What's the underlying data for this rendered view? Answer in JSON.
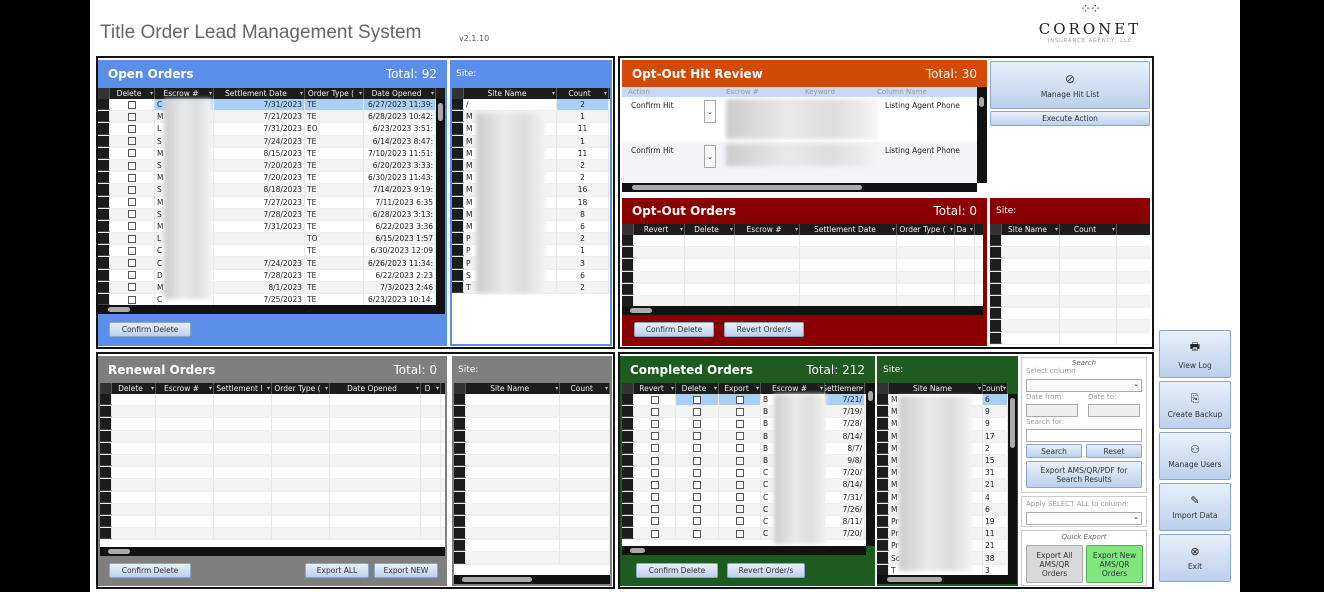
{
  "app": {
    "title": "Title Order Lead Management System",
    "version": "v2.1.10",
    "logo_name": "CORONET",
    "logo_sub": "INSURANCE AGENCY, LLC"
  },
  "colors": {
    "open": "#5b8ee8",
    "optout_review": "#d24a04",
    "optout": "#8a0000",
    "renewal": "#7f7f7f",
    "completed": "#1d5b20"
  },
  "open_orders": {
    "title": "Open Orders",
    "total": "Total: 92",
    "confirm_delete": "Confirm Delete",
    "columns": [
      "Delete",
      "Escrow #",
      "Settlement Date",
      "Order Type (",
      "Date Opened"
    ],
    "rows": [
      [
        "C",
        "7/31/2023",
        "TE",
        "6/27/2023 11:39:"
      ],
      [
        "M",
        "7/21/2023",
        "TE",
        "6/28/2023 10:42:"
      ],
      [
        "L",
        "7/31/2023",
        "EO",
        "6/23/2023 3:51:"
      ],
      [
        "S",
        "7/24/2023",
        "TE",
        "6/14/2023 8:47:"
      ],
      [
        "M",
        "8/15/2023",
        "TE",
        "7/10/2023 11:51:"
      ],
      [
        "S",
        "7/20/2023",
        "TE",
        "6/20/2023 3:33:"
      ],
      [
        "M",
        "7/20/2023",
        "TE",
        "6/30/2023 11:43:"
      ],
      [
        "S",
        "8/18/2023",
        "TE",
        "7/14/2023 9:19:"
      ],
      [
        "M",
        "7/27/2023",
        "TE",
        "7/11/2023 6:35"
      ],
      [
        "S",
        "7/28/2023",
        "TE",
        "6/28/2023 3:13:"
      ],
      [
        "M",
        "7/31/2023",
        "TE",
        "6/22/2023 3:36"
      ],
      [
        "L",
        "",
        "TO",
        "6/15/2023 1:57"
      ],
      [
        "C",
        "",
        "TE",
        "6/30/2023 12:09"
      ],
      [
        "C",
        "7/24/2023",
        "TE",
        "6/26/2023 11:34:"
      ],
      [
        "D",
        "7/28/2023",
        "TE",
        "6/22/2023 2:23"
      ],
      [
        "M",
        "8/1/2023",
        "TE",
        "7/3/2023 2:46"
      ],
      [
        "C",
        "7/25/2023",
        "TE",
        "6/23/2023 10:14:"
      ]
    ]
  },
  "open_sites": {
    "label": "Site:",
    "columns": [
      "Site Name",
      "Count"
    ],
    "rows": [
      [
        "/",
        "2"
      ],
      [
        "M",
        "1"
      ],
      [
        "M",
        "11"
      ],
      [
        "M",
        "1"
      ],
      [
        "M",
        "11"
      ],
      [
        "M",
        "2"
      ],
      [
        "M",
        "2"
      ],
      [
        "M",
        "16"
      ],
      [
        "M",
        "18"
      ],
      [
        "M",
        "8"
      ],
      [
        "M",
        "6"
      ],
      [
        "P",
        "2"
      ],
      [
        "P",
        "1"
      ],
      [
        "P",
        "3"
      ],
      [
        "S",
        "6"
      ],
      [
        "T",
        "2"
      ]
    ]
  },
  "optout_review": {
    "title": "Opt-Out Hit Review",
    "total": "Total: 30",
    "columns": [
      "Action",
      "Escrow #",
      "Keyword",
      "Column Name"
    ],
    "records": [
      {
        "action": "Confirm Hit",
        "column_name": "Listing Agent Phone"
      },
      {
        "action": "Confirm Hit",
        "column_name": "Listing Agent Phone"
      }
    ],
    "manage_hit_list": "Manage Hit List",
    "execute_action": "Execute Action"
  },
  "optout_orders": {
    "title": "Opt-Out Orders",
    "total": "Total: 0",
    "columns": [
      "Revert",
      "Delete",
      "Escrow #",
      "Settlement Date",
      "Order Type (",
      "Da"
    ],
    "confirm_delete": "Confirm Delete",
    "revert": "Revert Order/s"
  },
  "optout_sites": {
    "label": "Site:",
    "columns": [
      "Site Name",
      "Count"
    ]
  },
  "renewal_orders": {
    "title": "Renewal Orders",
    "total": "Total: 0",
    "columns": [
      "Delete",
      "Escrow #",
      "Settlement I",
      "Order Type (",
      "Date Opened",
      "D"
    ],
    "confirm_delete": "Confirm Delete",
    "export_all": "Export ALL",
    "export_new": "Export NEW"
  },
  "renewal_sites": {
    "label": "Site:",
    "columns": [
      "Site Name",
      "Count"
    ]
  },
  "completed_orders": {
    "title": "Completed Orders",
    "total": "Total: 212",
    "columns": [
      "Revert",
      "Delete",
      "Export",
      "Escrow #",
      "Settlemen"
    ],
    "rows": [
      [
        "B",
        "7/21/"
      ],
      [
        "B",
        "7/19/"
      ],
      [
        "B",
        "7/28/"
      ],
      [
        "B",
        "8/14/"
      ],
      [
        "B",
        "8/7/"
      ],
      [
        "B",
        "9/8/"
      ],
      [
        "C",
        "7/20/"
      ],
      [
        "C",
        "8/14/"
      ],
      [
        "C",
        "7/31/"
      ],
      [
        "C",
        "7/26/"
      ],
      [
        "C",
        "8/11/"
      ],
      [
        "C",
        "7/20/"
      ]
    ],
    "confirm_delete": "Confirm Delete",
    "revert": "Revert Order/s"
  },
  "completed_sites": {
    "label": "Site:",
    "columns": [
      "Site Name",
      "Count"
    ],
    "rows": [
      [
        "M",
        "6"
      ],
      [
        "M",
        "9"
      ],
      [
        "M",
        "9"
      ],
      [
        "M",
        "17"
      ],
      [
        "M",
        "2"
      ],
      [
        "M",
        "15"
      ],
      [
        "M",
        "31"
      ],
      [
        "M",
        "21"
      ],
      [
        "M",
        "4"
      ],
      [
        "M",
        "6"
      ],
      [
        "Pr",
        "19"
      ],
      [
        "Pr",
        "11"
      ],
      [
        "Pr",
        "21"
      ],
      [
        "Sc",
        "38"
      ],
      [
        "T",
        "3"
      ]
    ]
  },
  "search": {
    "heading": "Search",
    "select_column": "Select column",
    "date_from": "Date from:",
    "date_to": "Date to:",
    "search_for": "Search for:",
    "search_btn": "Search",
    "reset_btn": "Reset",
    "export_results": "Export AMS/QR/PDF for Search Results",
    "apply_select_all": "Apply SELECT ALL to column:",
    "quick_export": "Quick Export",
    "export_all": "Export All AMS/QR Orders",
    "export_new": "Export New AMS/QR Orders"
  },
  "sidebar": [
    {
      "label": "View Log",
      "icon": "printer-icon",
      "glyph": "🖶"
    },
    {
      "label": "Create Backup",
      "icon": "export-icon",
      "glyph": "⎘"
    },
    {
      "label": "Manage Users",
      "icon": "user-gear-icon",
      "glyph": "⚇"
    },
    {
      "label": "Import Data",
      "icon": "import-icon",
      "glyph": "✎"
    },
    {
      "label": "Exit",
      "icon": "exit-icon",
      "glyph": "⊗"
    }
  ]
}
